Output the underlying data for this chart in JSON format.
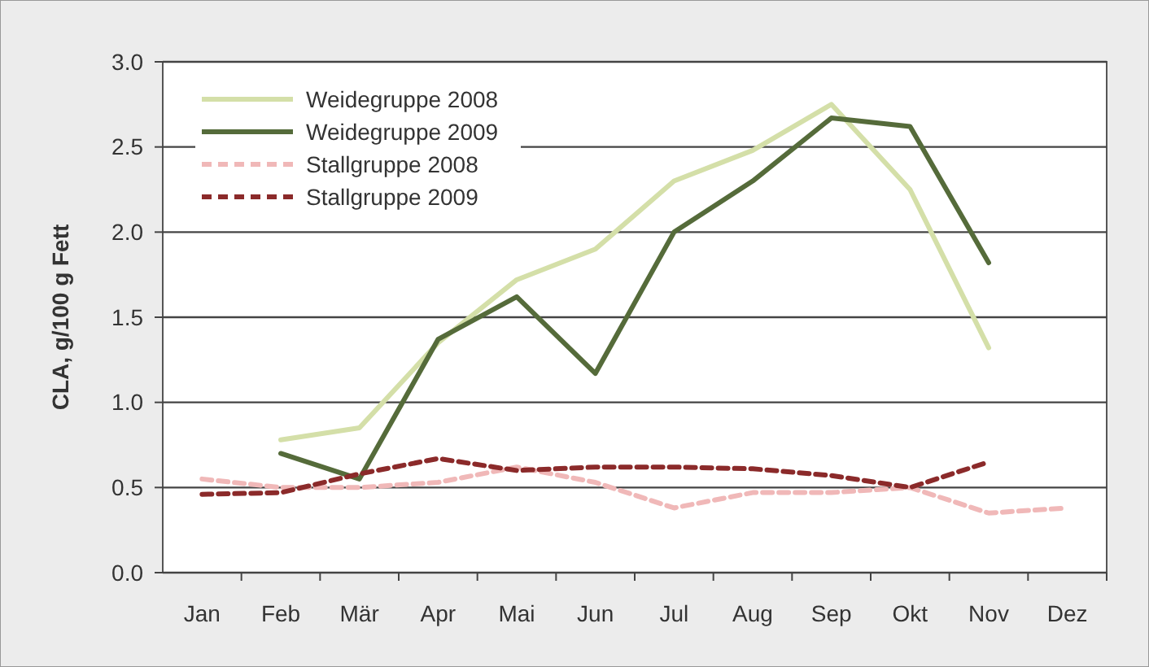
{
  "chart_data": {
    "type": "line",
    "ylabel": "CLA, g/100 g Fett",
    "categories": [
      "Jan",
      "Feb",
      "Mär",
      "Apr",
      "Mai",
      "Jun",
      "Jul",
      "Aug",
      "Sep",
      "Okt",
      "Nov",
      "Dez"
    ],
    "series": [
      {
        "name": "Weidegruppe 2008",
        "color": "#d4dfa8",
        "line_style": "solid",
        "values": [
          null,
          0.78,
          0.85,
          1.35,
          1.72,
          1.9,
          2.3,
          2.48,
          2.75,
          2.25,
          1.32,
          null
        ]
      },
      {
        "name": "Weidegruppe 2009",
        "color": "#556b3a",
        "line_style": "solid",
        "values": [
          null,
          0.7,
          0.55,
          1.37,
          1.62,
          1.17,
          2.0,
          2.3,
          2.67,
          2.62,
          1.82,
          null
        ]
      },
      {
        "name": "Stallgruppe 2008",
        "color": "#f0b8b8",
        "line_style": "dashed",
        "values": [
          0.55,
          0.5,
          0.5,
          0.53,
          0.62,
          0.53,
          0.38,
          0.47,
          0.47,
          0.5,
          0.35,
          0.38
        ]
      },
      {
        "name": "Stallgruppe 2009",
        "color": "#8b2a2a",
        "line_style": "dashed",
        "values": [
          0.46,
          0.47,
          0.58,
          0.67,
          0.6,
          0.62,
          0.62,
          0.61,
          0.57,
          0.5,
          0.65,
          null
        ]
      }
    ],
    "ylim": [
      0,
      3
    ],
    "yticks": [
      {
        "value": 0,
        "label": "0.0"
      },
      {
        "value": 0.5,
        "label": "0.5"
      },
      {
        "value": 1,
        "label": "1.0"
      },
      {
        "value": 1.5,
        "label": "1.5"
      },
      {
        "value": 2,
        "label": "2.0"
      },
      {
        "value": 2.5,
        "label": "2.5"
      },
      {
        "value": 3,
        "label": "3.0"
      }
    ],
    "grid": "y",
    "legend": "top left",
    "marker": "none"
  }
}
